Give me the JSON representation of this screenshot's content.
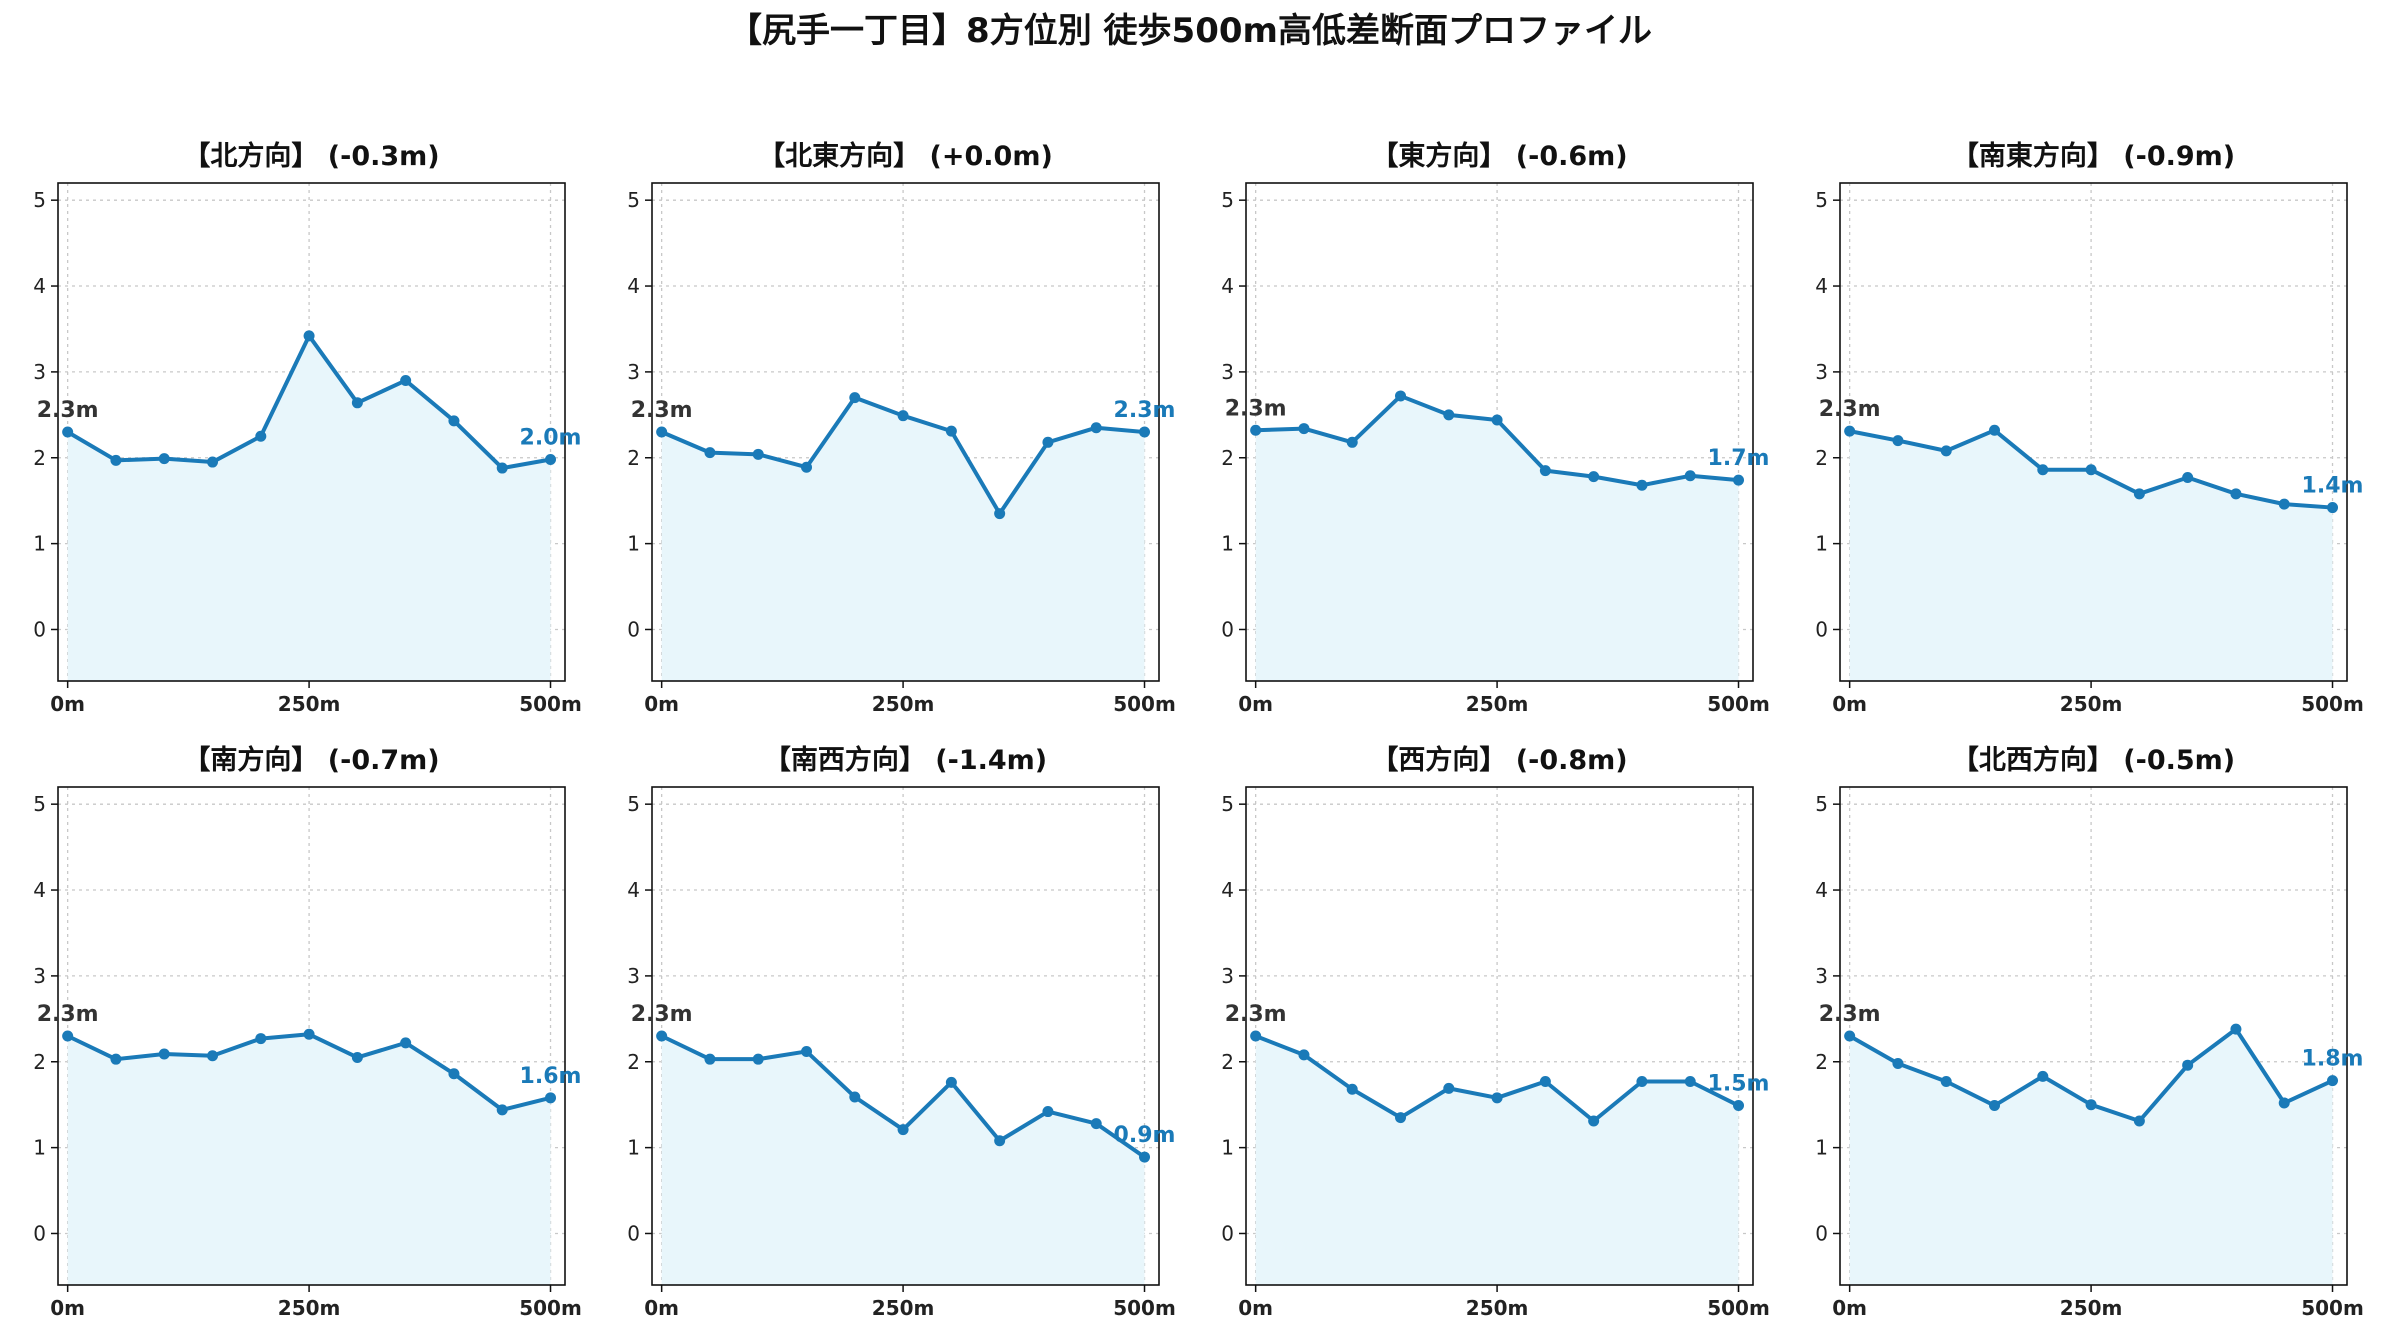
{
  "figure_title": "【尻手一丁目】8方位別 徒歩500m高低差断面プロファイル",
  "colors": {
    "line": "#1a7ab8",
    "fill": "#e8f6fb",
    "grid": "#c8c8c8",
    "end_label": "#1a7ab8",
    "start_label": "#333333"
  },
  "chart_data": [
    {
      "type": "area",
      "title": "【北方向】 (-0.3m)",
      "x": [
        0,
        50,
        100,
        150,
        200,
        250,
        300,
        350,
        400,
        450,
        500
      ],
      "values": [
        2.3,
        1.97,
        1.99,
        1.95,
        2.25,
        3.42,
        2.64,
        2.9,
        2.43,
        1.88,
        1.98
      ],
      "start_label": "2.3m",
      "end_label": "2.0m",
      "ylim": [
        -0.6,
        5.2
      ],
      "xlim": [
        -10,
        515
      ],
      "yticks": [
        "0",
        "1",
        "2",
        "3",
        "4",
        "5"
      ],
      "xticks": [
        "0m",
        "250m",
        "500m"
      ],
      "grid": true
    },
    {
      "type": "area",
      "title": "【北東方向】 (+0.0m)",
      "x": [
        0,
        50,
        100,
        150,
        200,
        250,
        300,
        350,
        400,
        450,
        500
      ],
      "values": [
        2.3,
        2.06,
        2.04,
        1.89,
        2.7,
        2.49,
        2.31,
        1.35,
        2.18,
        2.35,
        2.3
      ],
      "start_label": "2.3m",
      "end_label": "2.3m",
      "ylim": [
        -0.6,
        5.2
      ],
      "xlim": [
        -10,
        515
      ],
      "yticks": [
        "0",
        "1",
        "2",
        "3",
        "4",
        "5"
      ],
      "xticks": [
        "0m",
        "250m",
        "500m"
      ],
      "grid": true
    },
    {
      "type": "area",
      "title": "【東方向】 (-0.6m)",
      "x": [
        0,
        50,
        100,
        150,
        200,
        250,
        300,
        350,
        400,
        450,
        500
      ],
      "values": [
        2.32,
        2.34,
        2.18,
        2.72,
        2.5,
        2.44,
        1.85,
        1.78,
        1.68,
        1.79,
        1.74
      ],
      "start_label": "2.3m",
      "end_label": "1.7m",
      "ylim": [
        -0.6,
        5.2
      ],
      "xlim": [
        -10,
        515
      ],
      "yticks": [
        "0",
        "1",
        "2",
        "3",
        "4",
        "5"
      ],
      "xticks": [
        "0m",
        "250m",
        "500m"
      ],
      "grid": true
    },
    {
      "type": "area",
      "title": "【南東方向】 (-0.9m)",
      "x": [
        0,
        50,
        100,
        150,
        200,
        250,
        300,
        350,
        400,
        450,
        500
      ],
      "values": [
        2.31,
        2.2,
        2.08,
        2.32,
        1.86,
        1.86,
        1.58,
        1.77,
        1.58,
        1.46,
        1.42
      ],
      "start_label": "2.3m",
      "end_label": "1.4m",
      "ylim": [
        -0.6,
        5.2
      ],
      "xlim": [
        -10,
        515
      ],
      "yticks": [
        "0",
        "1",
        "2",
        "3",
        "4",
        "5"
      ],
      "xticks": [
        "0m",
        "250m",
        "500m"
      ],
      "grid": true
    },
    {
      "type": "area",
      "title": "【南方向】 (-0.7m)",
      "x": [
        0,
        50,
        100,
        150,
        200,
        250,
        300,
        350,
        400,
        450,
        500
      ],
      "values": [
        2.3,
        2.03,
        2.09,
        2.07,
        2.27,
        2.32,
        2.05,
        2.22,
        1.86,
        1.44,
        1.58
      ],
      "start_label": "2.3m",
      "end_label": "1.6m",
      "ylim": [
        -0.6,
        5.2
      ],
      "xlim": [
        -10,
        515
      ],
      "yticks": [
        "0",
        "1",
        "2",
        "3",
        "4",
        "5"
      ],
      "xticks": [
        "0m",
        "250m",
        "500m"
      ],
      "grid": true
    },
    {
      "type": "area",
      "title": "【南西方向】 (-1.4m)",
      "x": [
        0,
        50,
        100,
        150,
        200,
        250,
        300,
        350,
        400,
        450,
        500
      ],
      "values": [
        2.3,
        2.03,
        2.03,
        2.12,
        1.59,
        1.21,
        1.76,
        1.08,
        1.42,
        1.28,
        0.89
      ],
      "start_label": "2.3m",
      "end_label": "0.9m",
      "ylim": [
        -0.6,
        5.2
      ],
      "xlim": [
        -10,
        515
      ],
      "yticks": [
        "0",
        "1",
        "2",
        "3",
        "4",
        "5"
      ],
      "xticks": [
        "0m",
        "250m",
        "500m"
      ],
      "grid": true
    },
    {
      "type": "area",
      "title": "【西方向】 (-0.8m)",
      "x": [
        0,
        50,
        100,
        150,
        200,
        250,
        300,
        350,
        400,
        450,
        500
      ],
      "values": [
        2.3,
        2.08,
        1.68,
        1.35,
        1.69,
        1.58,
        1.77,
        1.31,
        1.77,
        1.77,
        1.49
      ],
      "start_label": "2.3m",
      "end_label": "1.5m",
      "ylim": [
        -0.6,
        5.2
      ],
      "xlim": [
        -10,
        515
      ],
      "yticks": [
        "0",
        "1",
        "2",
        "3",
        "4",
        "5"
      ],
      "xticks": [
        "0m",
        "250m",
        "500m"
      ],
      "grid": true
    },
    {
      "type": "area",
      "title": "【北西方向】 (-0.5m)",
      "x": [
        0,
        50,
        100,
        150,
        200,
        250,
        300,
        350,
        400,
        450,
        500
      ],
      "values": [
        2.3,
        1.98,
        1.77,
        1.49,
        1.83,
        1.5,
        1.31,
        1.96,
        2.38,
        1.52,
        1.78
      ],
      "start_label": "2.3m",
      "end_label": "1.8m",
      "ylim": [
        -0.6,
        5.2
      ],
      "xlim": [
        -10,
        515
      ],
      "yticks": [
        "0",
        "1",
        "2",
        "3",
        "4",
        "5"
      ],
      "xticks": [
        "0m",
        "250m",
        "500m"
      ],
      "grid": true
    }
  ]
}
